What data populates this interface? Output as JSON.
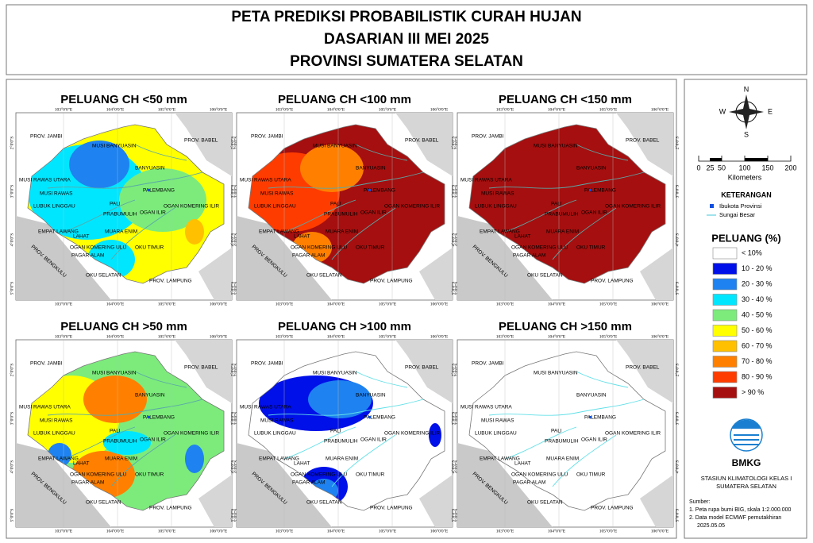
{
  "header": {
    "lines": [
      "PETA PREDIKSI PROBABILISTIK CURAH HUJAN",
      "DASARIAN III MEI 2025",
      "PROVINSI SUMATERA SELATAN"
    ]
  },
  "panels": [
    {
      "title": "PELUANG CH <50 mm"
    },
    {
      "title": "PELUANG CH <100 mm"
    },
    {
      "title": "PELUANG CH <150 mm"
    },
    {
      "title": "PELUANG CH >50 mm"
    },
    {
      "title": "PELUANG CH >100 mm"
    },
    {
      "title": "PELUANG CH >150 mm"
    }
  ],
  "map": {
    "lon_labels": [
      "103°0'0\"E",
      "104°0'0\"E",
      "105°0'0\"E",
      "106°0'0\"E"
    ],
    "lat_labels": [
      "2°0'0\"S",
      "3°0'0\"S",
      "4°0'0\"S",
      "5°0'0\"S"
    ],
    "regions": [
      "PROV. JAMBI",
      "PROV. BABEL",
      "MUSI BANYUASIN",
      "BANYUASIN",
      "MUSI RAWAS UTARA",
      "MUSI RAWAS",
      "PALEMBANG",
      "LUBUK LINGGAU",
      "PALI",
      "PRABUMULIH",
      "OGAN KOMERING ILIR",
      "OGAN ILIR",
      "EMPAT LAWANG",
      "LAHAT",
      "MUARA ENIM",
      "OGAN KOMERING ULU",
      "OKU TIMUR",
      "PAGAR ALAM",
      "OKU SELATAN",
      "PROV. LAMPUNG",
      "PROV. BENGKULU"
    ]
  },
  "legend": {
    "compass": {
      "n": "N",
      "s": "S",
      "e": "E",
      "w": "W"
    },
    "scale": {
      "ticks": [
        "0",
        "25",
        "50",
        "100",
        "150",
        "200"
      ],
      "unit": "Kilometers"
    },
    "keterangan": {
      "title": "KETERANGAN",
      "items": [
        "Ibukota Provinsi",
        "Sungai Besar"
      ]
    },
    "peluang": {
      "title": "PELUANG (%)",
      "classes": [
        {
          "label": "< 10%",
          "color": "#ffffff"
        },
        {
          "label": "10 - 20 %",
          "color": "#0010e8"
        },
        {
          "label": "20 - 30 %",
          "color": "#1e82f0"
        },
        {
          "label": "30 - 40 %",
          "color": "#00e6ff"
        },
        {
          "label": "40 - 50 %",
          "color": "#7ceb7c"
        },
        {
          "label": "50 - 60 %",
          "color": "#ffff00"
        },
        {
          "label": "60 - 70 %",
          "color": "#ffc000"
        },
        {
          "label": "70 - 80 %",
          "color": "#ff8000"
        },
        {
          "label": "80 - 90 %",
          "color": "#ff3c00"
        },
        {
          "label": "> 90 %",
          "color": "#a50f0f"
        }
      ]
    },
    "logo": "BMKG",
    "station": [
      "STASIUN KLIMATOLOGI KELAS I",
      "SUMATERA SELATAN"
    ],
    "sources": [
      "Sumber:",
      "1. Peta rupa bumi BIG, skala 1:2.000.000",
      "2. Data model ECMWF pemutakhiran",
      "2025.05.05"
    ]
  }
}
